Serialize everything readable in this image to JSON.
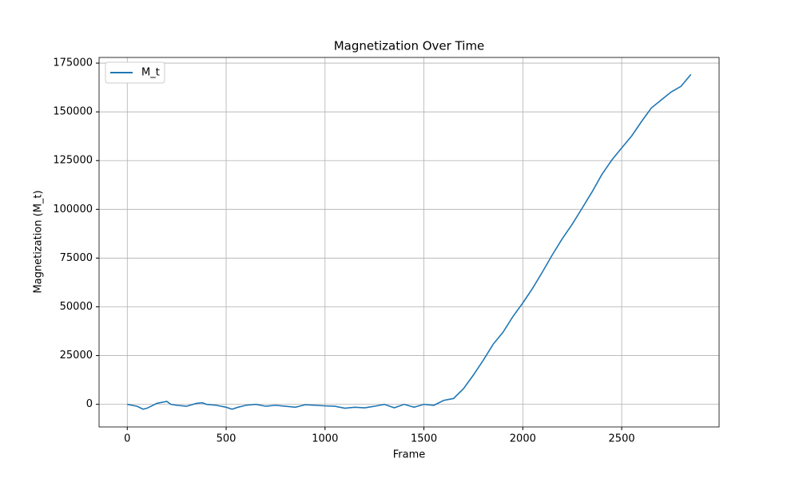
{
  "chart_data": {
    "type": "line",
    "title": "Magnetization Over Time",
    "x_label": "Frame",
    "y_label": "Magnetization (M_t)",
    "x": [
      0,
      50,
      80,
      100,
      150,
      200,
      220,
      250,
      300,
      350,
      380,
      400,
      450,
      500,
      530,
      560,
      600,
      650,
      700,
      750,
      800,
      850,
      900,
      950,
      1000,
      1050,
      1100,
      1150,
      1200,
      1250,
      1300,
      1350,
      1400,
      1450,
      1500,
      1550,
      1600,
      1650,
      1700,
      1750,
      1800,
      1850,
      1900,
      1950,
      2000,
      2050,
      2100,
      2150,
      2200,
      2250,
      2300,
      2350,
      2400,
      2450,
      2500,
      2550,
      2600,
      2650,
      2700,
      2750,
      2800,
      2850
    ],
    "series": [
      {
        "name": "M_t",
        "color": "#1f77b4",
        "values": [
          0,
          -1000,
          -2500,
          -2000,
          500,
          1500,
          0,
          -500,
          -1000,
          500,
          800,
          0,
          -500,
          -1500,
          -2500,
          -1500,
          -500,
          0,
          -1000,
          -500,
          -1000,
          -1500,
          -200,
          -500,
          -800,
          -1000,
          -2000,
          -1500,
          -1800,
          -1000,
          0,
          -1800,
          0,
          -1500,
          0,
          -500,
          2000,
          3000,
          8000,
          15000,
          22600,
          30800,
          37000,
          45000,
          52000,
          59600,
          68000,
          76800,
          85000,
          92400,
          100600,
          108900,
          117900,
          125300,
          131500,
          137600,
          145000,
          152000,
          156100,
          160200,
          163100,
          169200
        ]
      }
    ],
    "xlim": [
      -142.5,
      2992.5
    ],
    "xticks": [
      0,
      500,
      1000,
      1500,
      2000,
      2500
    ],
    "ylim": [
      -11600,
      177900
    ],
    "yticks": [
      0,
      25000,
      50000,
      75000,
      100000,
      125000,
      150000,
      175000
    ],
    "grid": true,
    "legend": "upper-left"
  }
}
